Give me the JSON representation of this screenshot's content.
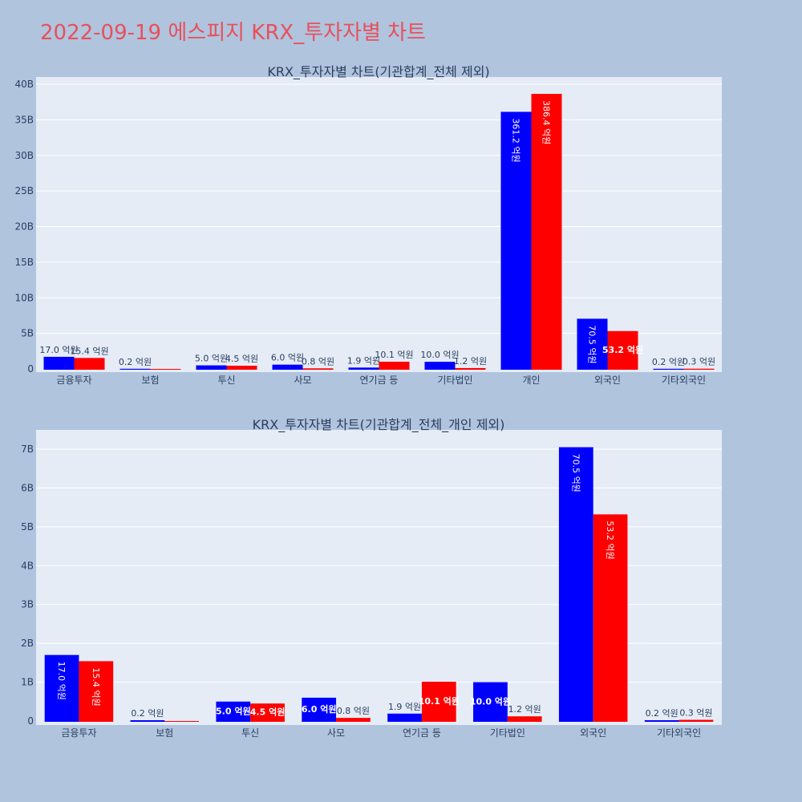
{
  "title": "2022-09-19 에스피지 KRX_투자자별 차트",
  "colors": {
    "title": "#e8505b",
    "paper": "#b0c4de",
    "plot_bg": "#e5ecf6",
    "grid": "#ffffff",
    "text": "#2a3f5f",
    "series_a": "#0000ff",
    "series_b": "#ff0000"
  },
  "chart_data": [
    {
      "type": "bar",
      "title": "KRX_투자자별 차트(기관합계_전체 제외)",
      "categories": [
        "금융투자",
        "보험",
        "투신",
        "사모",
        "연기금 등",
        "기타법인",
        "개인",
        "외국인",
        "기타외국인"
      ],
      "series": [
        {
          "values": [
            1.7,
            0.02,
            0.5,
            0.6,
            0.19,
            1.0,
            36.12,
            7.05,
            0.02
          ],
          "labels": [
            "17.0 억원",
            "0.2 억원",
            "5.0 억원",
            "6.0 억원",
            "1.9 억원",
            "10.0 억원",
            "361.2 억원",
            "70.5 억원",
            "0.2 억원"
          ]
        },
        {
          "values": [
            1.54,
            0,
            0.45,
            0.08,
            1.01,
            0.12,
            38.64,
            5.32,
            0.03
          ],
          "labels": [
            "15.4 억원",
            "",
            "4.5 억원",
            "0.8 억원",
            "10.1 억원",
            "1.2 억원",
            "386.4 억원",
            "53.2 억원",
            "0.3 억원"
          ]
        }
      ],
      "y_unit": "B",
      "ylim": [
        0,
        40
      ],
      "y_ticks": [
        0,
        5,
        10,
        15,
        20,
        25,
        30,
        35,
        40
      ],
      "grid": true,
      "legend": "none"
    },
    {
      "type": "bar",
      "title": "KRX_투자자별 차트(기관합계_전체_개인 제외)",
      "categories": [
        "금융투자",
        "보험",
        "투신",
        "사모",
        "연기금 등",
        "기타법인",
        "외국인",
        "기타외국인"
      ],
      "series": [
        {
          "values": [
            1.7,
            0.02,
            0.5,
            0.6,
            0.19,
            1.0,
            7.05,
            0.02
          ],
          "labels": [
            "17.0 억원",
            "0.2 억원",
            "5.0 억원",
            "6.0 억원",
            "1.9 억원",
            "10.0 억원",
            "70.5 억원",
            "0.2 억원"
          ]
        },
        {
          "values": [
            1.54,
            0,
            0.45,
            0.08,
            1.01,
            0.12,
            5.32,
            0.03
          ],
          "labels": [
            "15.4 억원",
            "",
            "4.5 억원",
            "0.8 억원",
            "10.1 억원",
            "1.2 억원",
            "53.2 억원",
            "0.3 억원"
          ]
        }
      ],
      "y_unit": "B",
      "ylim": [
        0,
        7.5
      ],
      "y_ticks": [
        0,
        1,
        2,
        3,
        4,
        5,
        6,
        7
      ],
      "grid": true,
      "legend": "none"
    }
  ]
}
